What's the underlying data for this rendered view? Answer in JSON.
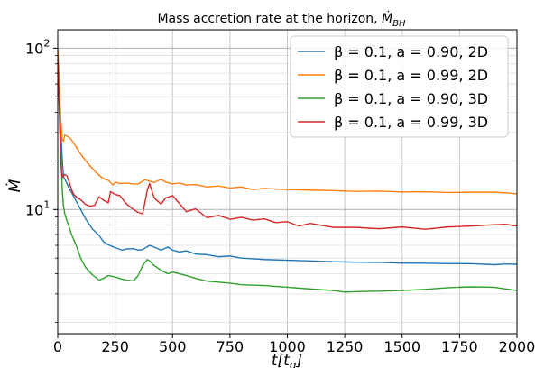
{
  "chart_data": {
    "type": "line",
    "title_text": "Mass accretion rate at the horizon, ",
    "title_math": {
      "symbol": "Ṁ",
      "subscript": "BH"
    },
    "xlabel": {
      "main": "t[t",
      "subscript": "g",
      "close": "]"
    },
    "ylabel": "Ṁ",
    "xlim": [
      0,
      2000
    ],
    "ylim": [
      1.7,
      130
    ],
    "yscale": "log",
    "grid": true,
    "legend_position": "top-right",
    "x_ticks": [
      0,
      250,
      500,
      750,
      1000,
      1250,
      1500,
      1750,
      2000
    ],
    "x_tick_labels": [
      "0",
      "250",
      "500",
      "750",
      "1000",
      "1250",
      "1500",
      "1750",
      "2000"
    ],
    "y_major_ticks": [
      {
        "value": 10,
        "base": "10",
        "exp": "1"
      },
      {
        "value": 100,
        "base": "10",
        "exp": "2"
      }
    ],
    "series": [
      {
        "name": "β = 0.1, a = 0.90, 2D",
        "color": "#1f77b4",
        "x": [
          0,
          5,
          10,
          15,
          20,
          25,
          30,
          40,
          50,
          60,
          80,
          100,
          120,
          150,
          180,
          200,
          220,
          250,
          280,
          300,
          330,
          350,
          370,
          400,
          420,
          450,
          480,
          500,
          530,
          560,
          600,
          650,
          700,
          750,
          800,
          850,
          900,
          1000,
          1100,
          1200,
          1300,
          1400,
          1500,
          1600,
          1700,
          1800,
          1900,
          1950,
          2000
        ],
        "y": [
          95,
          60,
          40,
          28,
          20,
          16,
          15.5,
          14.5,
          13.5,
          12.8,
          11.3,
          10,
          8.8,
          7.6,
          6.9,
          6.3,
          6.05,
          5.8,
          5.6,
          5.7,
          5.72,
          5.6,
          5.65,
          6.0,
          5.85,
          5.6,
          5.85,
          5.6,
          5.45,
          5.55,
          5.3,
          5.25,
          5.1,
          5.15,
          5.0,
          4.95,
          4.9,
          4.85,
          4.8,
          4.75,
          4.72,
          4.7,
          4.66,
          4.65,
          4.62,
          4.62,
          4.55,
          4.6,
          4.58
        ]
      },
      {
        "name": "β = 0.1, a = 0.99, 2D",
        "color": "#ff7f0e",
        "x": [
          0,
          5,
          10,
          15,
          20,
          25,
          30,
          40,
          50,
          60,
          80,
          100,
          120,
          150,
          180,
          200,
          220,
          240,
          250,
          270,
          300,
          330,
          350,
          380,
          400,
          420,
          450,
          470,
          500,
          530,
          560,
          600,
          650,
          700,
          750,
          800,
          850,
          900,
          1000,
          1100,
          1200,
          1300,
          1400,
          1500,
          1600,
          1700,
          1800,
          1900,
          1950,
          2000
        ],
        "y": [
          100,
          70,
          45,
          33,
          27,
          26.5,
          29,
          28.5,
          28,
          27,
          24.5,
          22,
          20.2,
          18,
          16.3,
          15.5,
          15.2,
          14.2,
          14.8,
          14.5,
          14.6,
          14.4,
          14.4,
          15.3,
          15.0,
          14.7,
          15.4,
          14.8,
          14.4,
          14.6,
          14.2,
          14.3,
          13.8,
          14.0,
          13.6,
          13.8,
          13.3,
          13.5,
          13.3,
          13.2,
          13.1,
          12.95,
          13.0,
          12.85,
          12.9,
          12.75,
          12.8,
          12.8,
          12.7,
          12.5
        ]
      },
      {
        "name": "β = 0.1, a = 0.90, 3D",
        "color": "#2ca02c",
        "x": [
          0,
          5,
          10,
          15,
          20,
          25,
          30,
          40,
          50,
          60,
          80,
          100,
          120,
          150,
          180,
          200,
          220,
          250,
          280,
          300,
          330,
          350,
          370,
          390,
          400,
          420,
          450,
          480,
          500,
          530,
          560,
          600,
          650,
          700,
          750,
          800,
          900,
          1000,
          1100,
          1200,
          1250,
          1300,
          1400,
          1500,
          1600,
          1700,
          1800,
          1900,
          1950,
          2000
        ],
        "y": [
          90,
          55,
          35,
          20,
          13,
          10.5,
          9.5,
          8.5,
          7.8,
          7.0,
          6.0,
          5.0,
          4.4,
          3.95,
          3.65,
          3.75,
          3.9,
          3.82,
          3.7,
          3.65,
          3.62,
          3.9,
          4.5,
          4.9,
          4.8,
          4.5,
          4.2,
          4.0,
          4.1,
          4.0,
          3.9,
          3.75,
          3.6,
          3.55,
          3.5,
          3.42,
          3.38,
          3.3,
          3.22,
          3.15,
          3.08,
          3.1,
          3.12,
          3.15,
          3.2,
          3.28,
          3.32,
          3.3,
          3.22,
          3.15
        ]
      },
      {
        "name": "β = 0.1, a = 0.99, 3D",
        "color": "#d62728",
        "x": [
          0,
          5,
          10,
          15,
          20,
          25,
          30,
          40,
          50,
          60,
          70,
          80,
          100,
          120,
          140,
          160,
          180,
          200,
          220,
          230,
          250,
          270,
          300,
          330,
          350,
          370,
          390,
          400,
          420,
          450,
          470,
          500,
          530,
          560,
          600,
          650,
          700,
          750,
          800,
          850,
          900,
          950,
          1000,
          1050,
          1100,
          1200,
          1300,
          1400,
          1500,
          1600,
          1700,
          1800,
          1900,
          1950,
          2000
        ],
        "y": [
          90,
          50,
          28,
          18,
          15.8,
          16.2,
          16.5,
          16.2,
          14.8,
          13.3,
          12.4,
          12.0,
          11.5,
          10.8,
          10.5,
          10.6,
          12.0,
          11.4,
          11.0,
          12.9,
          12.4,
          12.2,
          10.8,
          10.0,
          9.6,
          9.4,
          13.2,
          14.5,
          11.8,
          10.8,
          11.8,
          12.2,
          10.9,
          9.7,
          10.1,
          8.9,
          9.2,
          8.7,
          8.95,
          8.6,
          8.75,
          8.3,
          8.4,
          7.9,
          8.2,
          7.75,
          7.75,
          7.6,
          7.8,
          7.55,
          7.8,
          7.9,
          8.05,
          8.1,
          7.9
        ]
      }
    ]
  }
}
